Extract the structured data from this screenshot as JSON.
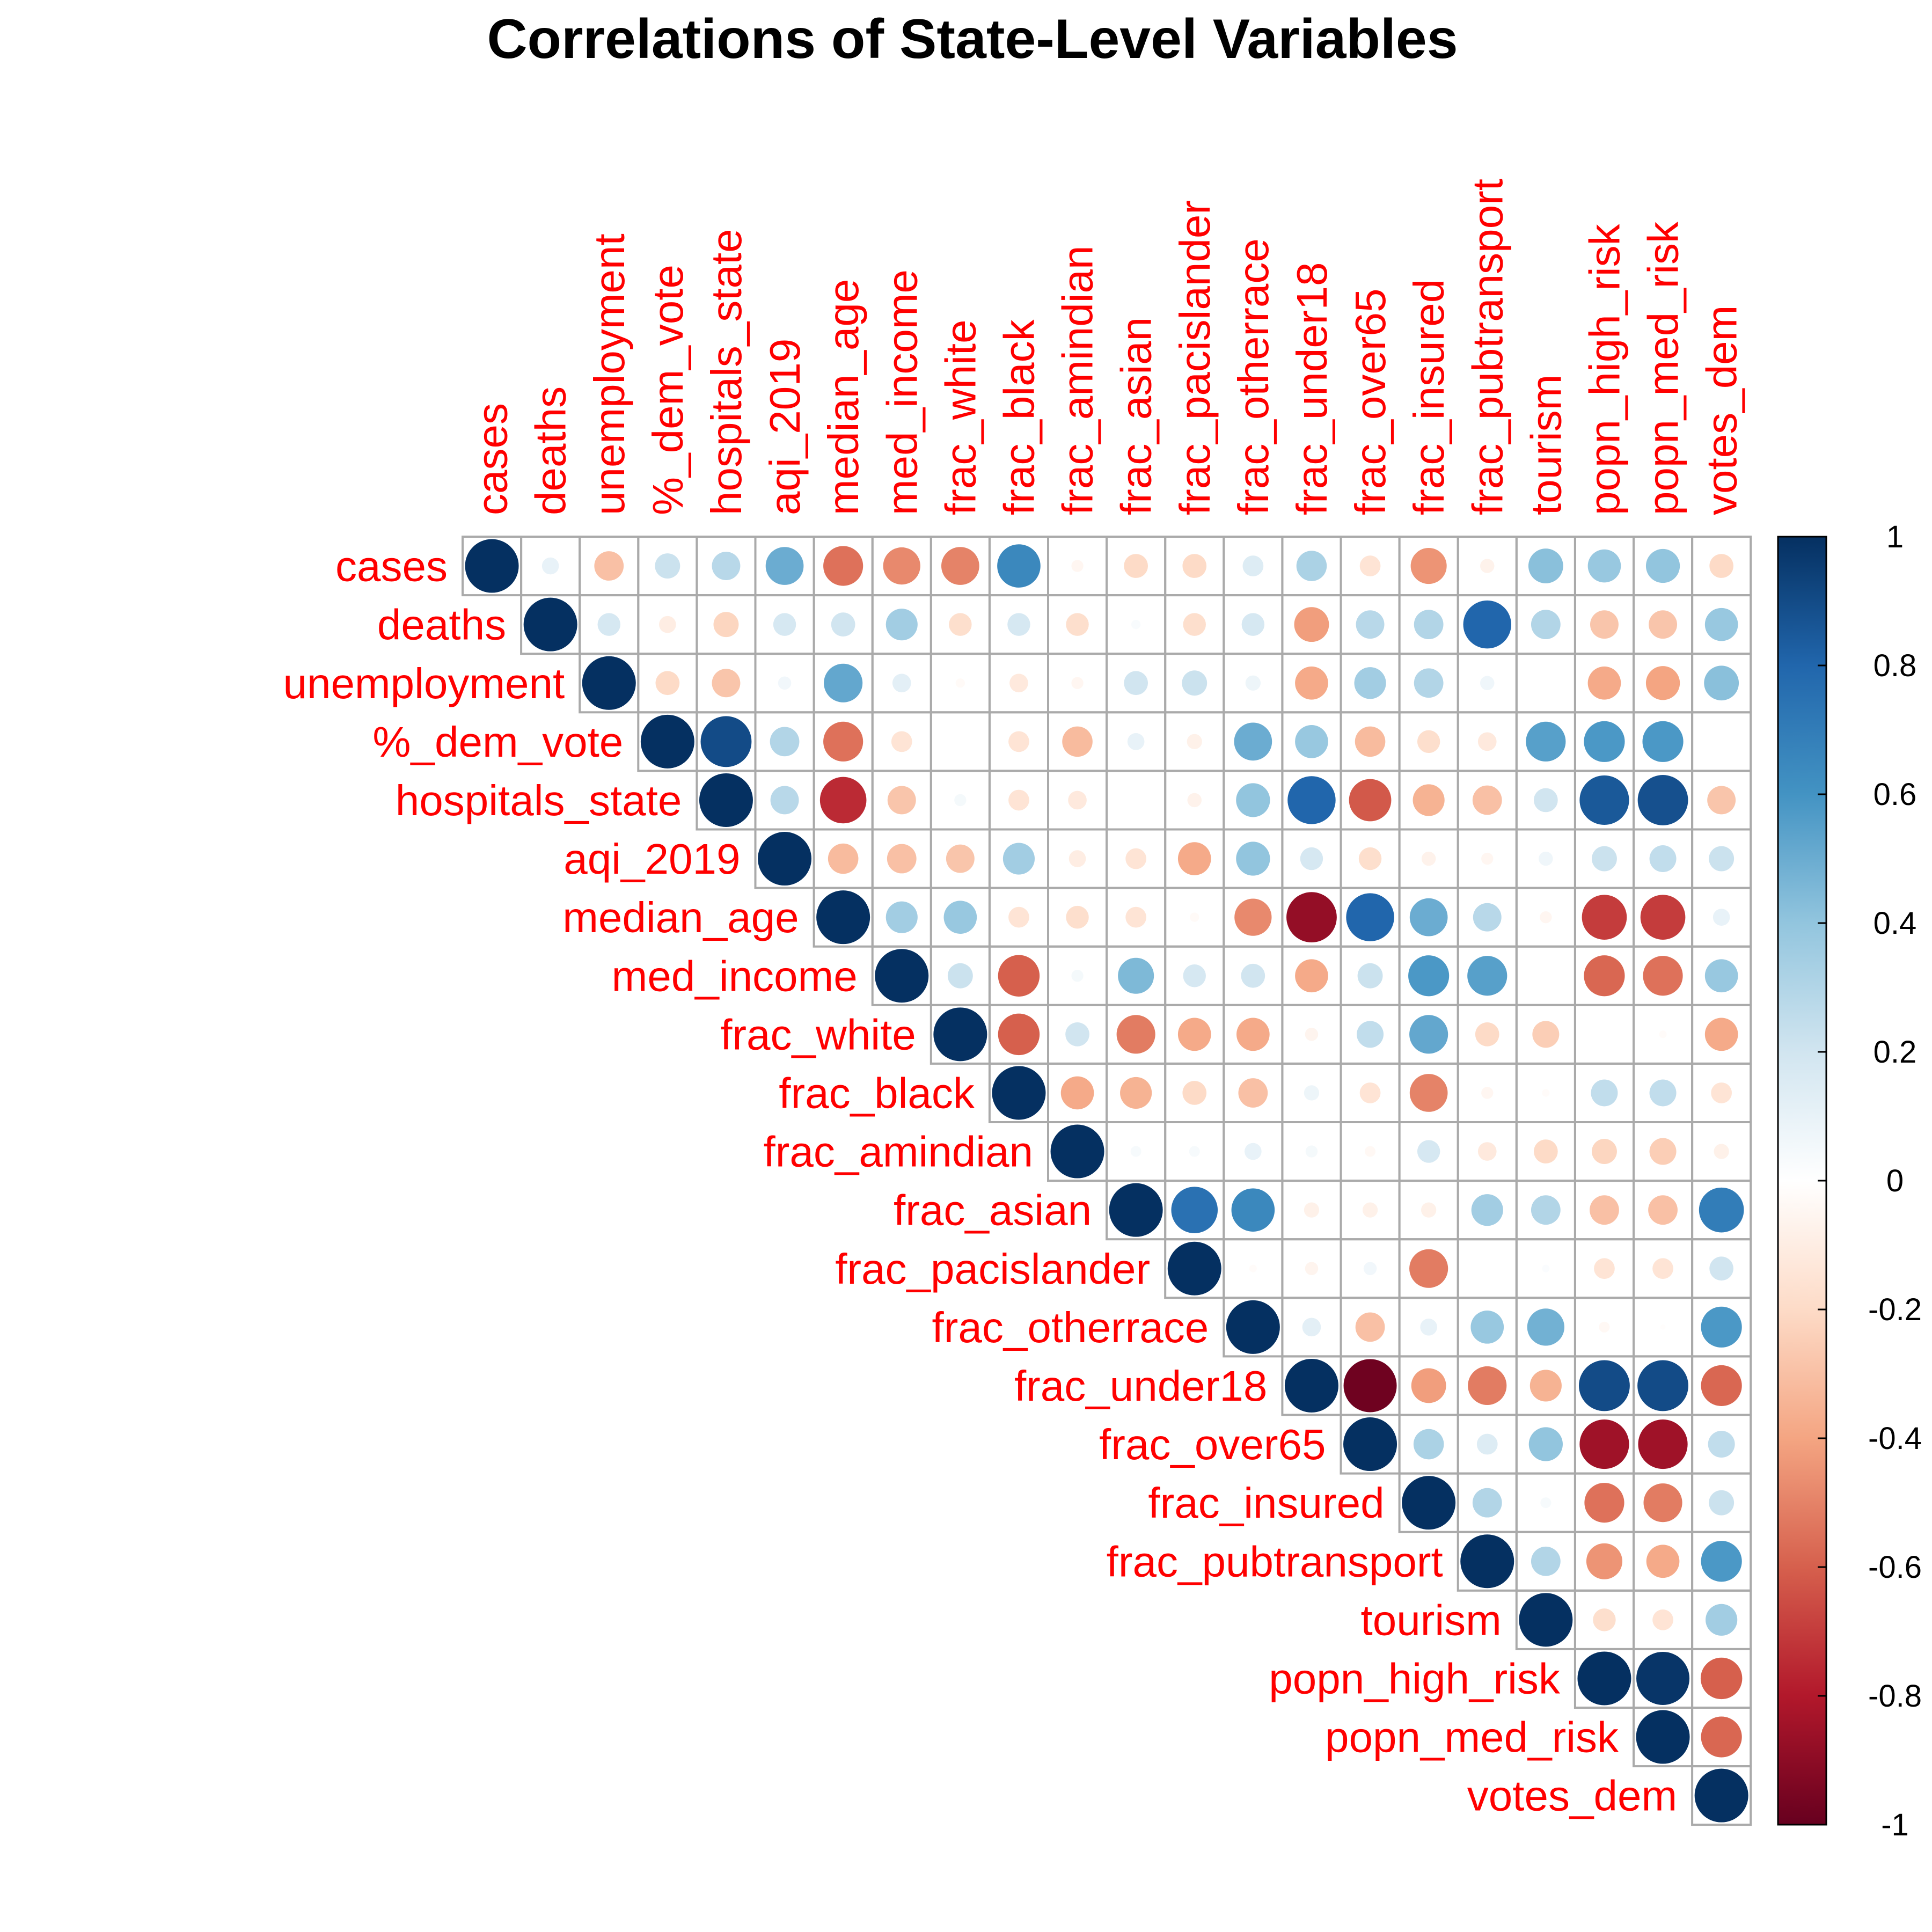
{
  "chart_data": {
    "type": "heatmap",
    "title": "Correlations of State-Level Variables",
    "variables": [
      "cases",
      "deaths",
      "unemployment",
      "%_dem_vote",
      "hospitals_state",
      "aqi_2019",
      "median_age",
      "med_income",
      "frac_white",
      "frac_black",
      "frac_amindian",
      "frac_asian",
      "frac_pacislander",
      "frac_otherrace",
      "frac_under18",
      "frac_over65",
      "frac_insured",
      "frac_pubtransport",
      "tourism",
      "popn_high_risk",
      "popn_med_risk",
      "votes_dem"
    ],
    "upper_triangle": [
      [
        1,
        0.1,
        -0.3,
        0.22,
        0.28,
        0.5,
        -0.55,
        -0.48,
        -0.5,
        0.65,
        -0.05,
        -0.2,
        -0.2,
        0.15,
        0.32,
        -0.15,
        -0.45,
        -0.07,
        0.42,
        0.38,
        0.4,
        -0.2
      ],
      [
        1,
        0.18,
        -0.1,
        -0.22,
        0.18,
        0.2,
        0.35,
        -0.18,
        0.18,
        -0.18,
        0.03,
        -0.18,
        0.18,
        -0.42,
        0.28,
        0.3,
        0.8,
        0.3,
        -0.28,
        -0.28,
        0.38
      ],
      [
        1,
        -0.2,
        -0.28,
        0.06,
        0.52,
        0.12,
        -0.03,
        -0.12,
        -0.05,
        0.2,
        0.22,
        0.08,
        -0.38,
        0.35,
        0.3,
        0.07,
        0,
        -0.38,
        -0.4,
        0.42
      ],
      [
        1,
        0.9,
        0.3,
        -0.55,
        -0.15,
        0,
        -0.15,
        -0.32,
        0.1,
        -0.08,
        0.5,
        0.38,
        -0.32,
        -0.18,
        -0.12,
        0.55,
        0.58,
        0.58,
        0
      ],
      [
        1,
        0.28,
        -0.75,
        -0.28,
        0.05,
        -0.15,
        -0.12,
        0,
        -0.07,
        0.4,
        0.8,
        -0.62,
        -0.35,
        -0.3,
        0.2,
        0.85,
        0.88,
        -0.28
      ],
      [
        1,
        -0.32,
        -0.3,
        -0.28,
        0.35,
        -0.1,
        -0.15,
        -0.38,
        0.4,
        0.18,
        -0.18,
        -0.07,
        -0.05,
        0.07,
        0.22,
        0.25,
        0.22
      ],
      [
        1,
        0.35,
        0.38,
        -0.15,
        -0.18,
        -0.15,
        -0.03,
        -0.48,
        -0.88,
        0.8,
        0.5,
        0.28,
        -0.05,
        -0.7,
        -0.7,
        0.1
      ],
      [
        1,
        0.22,
        -0.6,
        0.05,
        0.45,
        0.18,
        0.2,
        -0.38,
        0.22,
        0.58,
        0.55,
        0,
        -0.58,
        -0.55,
        0.38
      ],
      [
        1,
        -0.6,
        0.2,
        -0.52,
        -0.38,
        -0.38,
        -0.06,
        0.25,
        0.52,
        -0.2,
        -0.25,
        0,
        -0.02,
        -0.38
      ],
      [
        1,
        -0.38,
        -0.35,
        -0.2,
        -0.3,
        0.08,
        -0.15,
        -0.5,
        -0.05,
        -0.02,
        0.25,
        0.25,
        -0.15
      ],
      [
        1,
        0.04,
        0.04,
        0.1,
        0.05,
        -0.04,
        0.18,
        -0.12,
        -0.2,
        -0.22,
        -0.25,
        -0.08
      ],
      [
        1,
        0.75,
        0.65,
        -0.08,
        -0.08,
        -0.08,
        0.35,
        0.3,
        -0.3,
        -0.3,
        0.7
      ],
      [
        1,
        -0.02,
        -0.06,
        0.06,
        -0.52,
        0,
        0.02,
        -0.15,
        -0.15,
        0.2
      ],
      [
        1,
        0.12,
        -0.3,
        0.1,
        0.38,
        0.48,
        -0.04,
        -0.01,
        0.58
      ],
      [
        1,
        -0.98,
        -0.42,
        -0.52,
        -0.35,
        0.9,
        0.9,
        -0.58
      ],
      [
        1,
        0.32,
        0.15,
        0.4,
        -0.85,
        -0.85,
        0.25
      ],
      [
        1,
        0.3,
        0.04,
        -0.55,
        -0.52,
        0.22
      ],
      [
        1,
        0.3,
        -0.45,
        -0.38,
        0.58
      ],
      [
        1,
        -0.18,
        -0.15,
        0.35
      ],
      [
        1,
        0.98,
        -0.6
      ],
      [
        1,
        -0.58
      ],
      [
        1
      ]
    ],
    "colorbar": {
      "range": [
        -1,
        1
      ],
      "ticks": [
        "1",
        "0.8",
        "0.6",
        "0.4",
        "0.2",
        "0",
        "-0.2",
        "-0.4",
        "-0.6",
        "-0.8",
        "-1"
      ]
    }
  },
  "colors": {
    "label": "#FF0000",
    "grid": "#AAAAAA",
    "scale": [
      "#67001F",
      "#B2182B",
      "#D6604D",
      "#F4A582",
      "#FDDBC7",
      "#FFFFFF",
      "#D1E5F0",
      "#92C5DE",
      "#4393C3",
      "#2166AC",
      "#053061"
    ]
  }
}
